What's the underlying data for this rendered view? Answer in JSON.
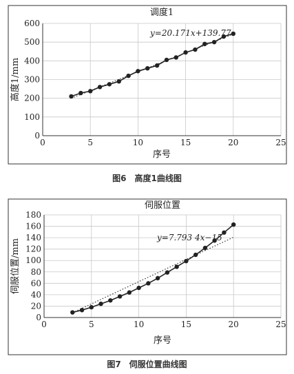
{
  "figures": [
    {
      "caption": "图6　高度1曲线图",
      "chart_data": {
        "type": "line",
        "title": "调度1",
        "xlabel": "序号",
        "ylabel": "高度1/mm",
        "xlim": [
          0,
          25
        ],
        "ylim": [
          0,
          600
        ],
        "xticks": [
          0,
          5,
          10,
          15,
          20,
          25
        ],
        "yticks": [
          0,
          100,
          200,
          300,
          400,
          500,
          600
        ],
        "grid": true,
        "series": [
          {
            "x": [
              3,
              4,
              5,
              6,
              7,
              8,
              9,
              10,
              11,
              12,
              13,
              14,
              15,
              16,
              17,
              18,
              19,
              20
            ],
            "y": [
              210,
              228,
              238,
              260,
              275,
              290,
              320,
              345,
              360,
              375,
              405,
              418,
              445,
              460,
              490,
              500,
              530,
              545
            ]
          }
        ],
        "trendline": {
          "slope": 20.171,
          "intercept": 139.77,
          "x_range": [
            3,
            20
          ]
        },
        "equation": "y=20.171x+139.77"
      }
    },
    {
      "caption": "图7　伺服位置曲线图",
      "chart_data": {
        "type": "line",
        "title": "伺服位置",
        "xlabel": "序号",
        "ylabel": "伺服位置/mm",
        "xlim": [
          0,
          25
        ],
        "ylim": [
          0,
          180
        ],
        "xticks": [
          0,
          5,
          10,
          15,
          20,
          25
        ],
        "yticks": [
          0,
          20,
          40,
          60,
          80,
          100,
          120,
          140,
          160,
          180
        ],
        "grid": true,
        "series": [
          {
            "x": [
              3,
              4,
              5,
              6,
              7,
              8,
              9,
              10,
              11,
              12,
              13,
              14,
              15,
              16,
              17,
              18,
              19,
              20
            ],
            "y": [
              9,
              13,
              18,
              24,
              30,
              37,
              44,
              52,
              60,
              69,
              79,
              89,
              99,
              110,
              122,
              135,
              149,
              163
            ]
          }
        ],
        "trendline": {
          "slope": 7.7934,
          "intercept": -15,
          "x_range": [
            3,
            20
          ]
        },
        "equation": "y=7.793 4x−15"
      }
    }
  ]
}
